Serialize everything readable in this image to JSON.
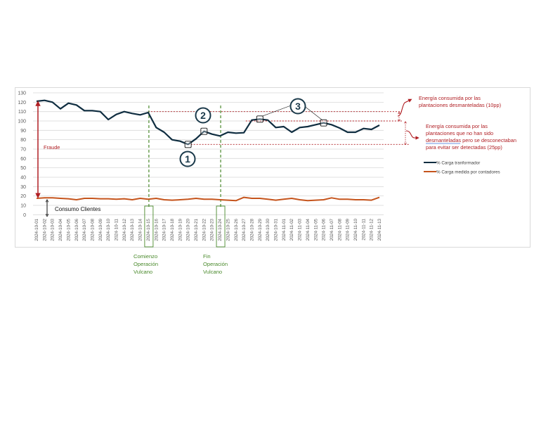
{
  "chart_data": {
    "type": "line",
    "title": "",
    "xlabel": "",
    "ylabel": "",
    "ylim": [
      0,
      130
    ],
    "yticks": [
      0,
      10,
      20,
      30,
      40,
      50,
      60,
      70,
      80,
      90,
      100,
      110,
      120,
      130
    ],
    "grid": true,
    "legend_position": "right",
    "categories": [
      "2024-10-01",
      "2024-10-02",
      "2024-10-03",
      "2024-10-04",
      "2024-10-05",
      "2024-10-06",
      "2024-10-07",
      "2024-10-08",
      "2024-10-09",
      "2024-10-10",
      "2024-10-11",
      "2024-10-12",
      "2024-10-13",
      "2024-10-14",
      "2024-10-15",
      "2024-10-16",
      "2024-10-17",
      "2024-10-18",
      "2024-10-19",
      "2024-10-20",
      "2024-10-21",
      "2024-10-22",
      "2024-10-23",
      "2024-10-24",
      "2024-10-25",
      "2024-10-26",
      "2024-10-27",
      "2024-10-28",
      "2024-10-29",
      "2024-10-30",
      "2024-10-31",
      "2024-11-01",
      "2024-11-02",
      "2024-11-03",
      "2024-11-04",
      "2024-11-05",
      "2024-11-06",
      "2024-11-07",
      "2024-11-08",
      "2024-11-09",
      "2024-11-10",
      "2024-11-11",
      "2024-11-12",
      "2024-11-13"
    ],
    "series": [
      {
        "name": "% Carga tranformador",
        "color": "#0f2d40",
        "values": [
          121,
          122,
          120,
          113,
          119,
          117,
          111,
          111,
          110,
          101.5,
          107,
          110,
          108,
          106.5,
          109,
          93,
          88,
          80,
          78.5,
          75,
          81,
          89,
          86,
          84,
          88,
          87,
          87.5,
          101,
          102,
          101,
          93,
          94,
          88,
          93,
          94,
          96,
          98,
          96,
          92.5,
          88,
          88,
          92,
          91,
          95.5
        ]
      },
      {
        "name": "% Carga medida por contadores",
        "color": "#c5541c",
        "values": [
          17.5,
          18,
          18,
          17.5,
          17,
          16,
          17.5,
          17.5,
          17,
          17,
          16.5,
          17,
          16,
          17.5,
          16.5,
          17.5,
          16,
          15.5,
          16,
          16.5,
          17.5,
          16.5,
          16.5,
          16,
          15.5,
          15,
          18.5,
          17.5,
          17.5,
          16.5,
          15.5,
          16.5,
          17.5,
          16,
          15,
          15.5,
          16,
          18,
          16.5,
          16.5,
          16,
          16,
          15.5,
          18.5
        ]
      }
    ],
    "annotations": {
      "fraude_label": "Fraude",
      "consumo_label": "Consumo Clientes",
      "comienzo": [
        "Comienzo",
        "Operación",
        "Vulcano"
      ],
      "fin": [
        "Fin",
        "Operación",
        "Vulcano"
      ],
      "start_date": "2024-10-15",
      "end_date": "2024-10-24",
      "ref_lines": [
        110,
        100,
        75
      ],
      "energia_desmanteladas": [
        "Energía consumida por las",
        "plantaciones desmanteladas (10pp)"
      ],
      "energia_no_desmanteladas": [
        "Energía consumida por las",
        "plantaciones que no han sido",
        "desmanteladas pero se desconectaban",
        "para evitar ser detectadas (25pp)"
      ],
      "markers": [
        {
          "label": "1",
          "date": "2024-10-20"
        },
        {
          "label": "2",
          "date": "2024-10-22"
        },
        {
          "label": "3",
          "dates": [
            "2024-10-29",
            "2024-11-06"
          ]
        }
      ]
    },
    "colors": {
      "fraud_red": "#b01e23",
      "operation_green": "#4a8a2c",
      "grid": "#d9d9d9"
    }
  }
}
